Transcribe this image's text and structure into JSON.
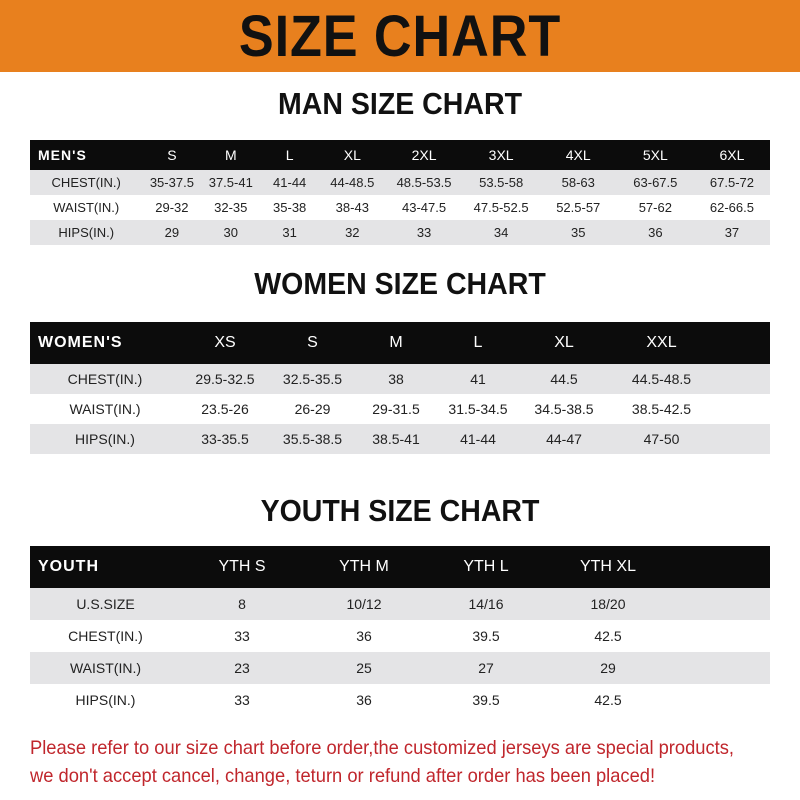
{
  "title": "SIZE CHART",
  "colors": {
    "banner": "#e8801e",
    "header_row": "#0c0c0c",
    "note": "#c0262c"
  },
  "men": {
    "title": "MAN SIZE CHART",
    "header": [
      "MEN'S",
      "S",
      "M",
      "L",
      "XL",
      "2XL",
      "3XL",
      "4XL",
      "5XL",
      "6XL"
    ],
    "rows": [
      [
        "CHEST(IN.)",
        "35-37.5",
        "37.5-41",
        "41-44",
        "44-48.5",
        "48.5-53.5",
        "53.5-58",
        "58-63",
        "63-67.5",
        "67.5-72"
      ],
      [
        "WAIST(IN.)",
        "29-32",
        "32-35",
        "35-38",
        "38-43",
        "43-47.5",
        "47.5-52.5",
        "52.5-57",
        "57-62",
        "62-66.5"
      ],
      [
        "HIPS(IN.)",
        "29",
        "30",
        "31",
        "32",
        "33",
        "34",
        "35",
        "36",
        "37"
      ]
    ]
  },
  "women": {
    "title": "WOMEN SIZE CHART",
    "header": [
      "WOMEN'S",
      "XS",
      "S",
      "M",
      "L",
      "XL",
      "XXL"
    ],
    "rows": [
      [
        "CHEST(IN.)",
        "29.5-32.5",
        "32.5-35.5",
        "38",
        "41",
        "44.5",
        "44.5-48.5"
      ],
      [
        "WAIST(IN.)",
        "23.5-26",
        "26-29",
        "29-31.5",
        "31.5-34.5",
        "34.5-38.5",
        "38.5-42.5"
      ],
      [
        "HIPS(IN.)",
        "33-35.5",
        "35.5-38.5",
        "38.5-41",
        "41-44",
        "44-47",
        "47-50"
      ]
    ]
  },
  "youth": {
    "title": "YOUTH SIZE CHART",
    "header": [
      "YOUTH",
      "YTH S",
      "YTH M",
      "YTH L",
      "YTH XL"
    ],
    "rows": [
      [
        "U.S.SIZE",
        "8",
        "10/12",
        "14/16",
        "18/20"
      ],
      [
        "CHEST(IN.)",
        "33",
        "36",
        "39.5",
        "42.5"
      ],
      [
        "WAIST(IN.)",
        "23",
        "25",
        "27",
        "29"
      ],
      [
        "HIPS(IN.)",
        "33",
        "36",
        "39.5",
        "42.5"
      ]
    ]
  },
  "note": [
    "Please refer to our size chart before order,the customized jerseys are special products,",
    "we don't accept cancel, change, teturn or refund after order has been placed!"
  ]
}
